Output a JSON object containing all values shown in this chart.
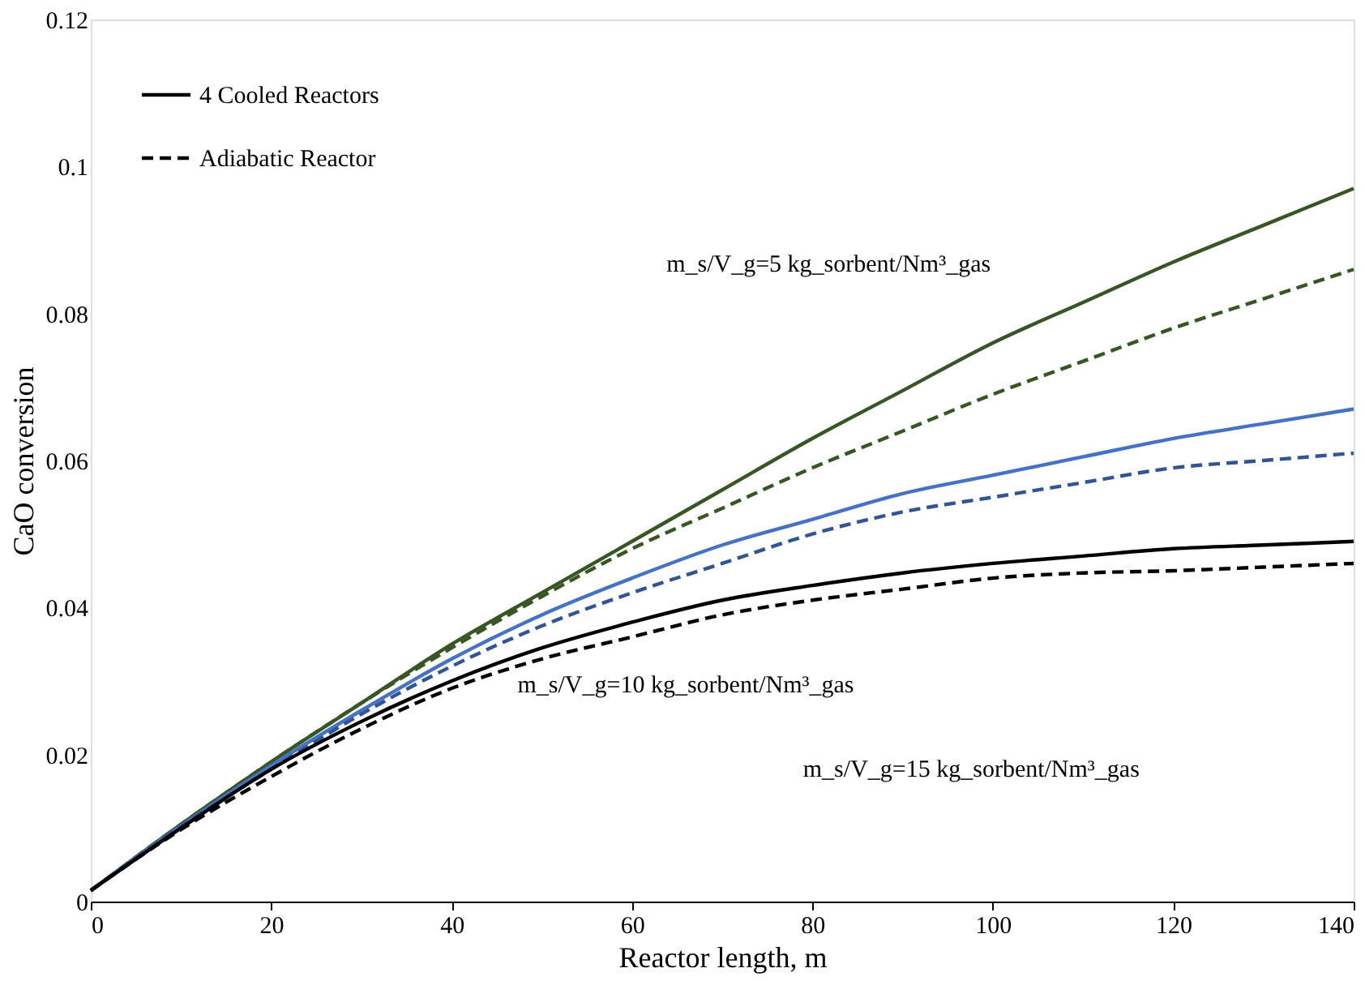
{
  "chart_data": {
    "type": "line",
    "xlabel": "Reactor length, m",
    "ylabel": "CaO conversion",
    "x": [
      0,
      10,
      20,
      30,
      40,
      50,
      60,
      70,
      80,
      90,
      100,
      110,
      120,
      130,
      140
    ],
    "series": [
      {
        "color": "#375623",
        "line_style": "solid",
        "values": [
          0.0015,
          0.0105,
          0.019,
          0.027,
          0.035,
          0.042,
          0.049,
          0.056,
          0.063,
          0.0695,
          0.076,
          0.0815,
          0.087,
          0.092,
          0.097
        ]
      },
      {
        "color": "#375623",
        "line_style": "dashed",
        "values": [
          0.0015,
          0.0105,
          0.019,
          0.027,
          0.0345,
          0.0415,
          0.048,
          0.0535,
          0.059,
          0.064,
          0.069,
          0.0735,
          0.078,
          0.082,
          0.086
        ]
      },
      {
        "color": "#4472c4",
        "line_style": "solid",
        "values": [
          0.0015,
          0.0103,
          0.0185,
          0.026,
          0.033,
          0.039,
          0.044,
          0.0485,
          0.052,
          0.0555,
          0.058,
          0.0605,
          0.063,
          0.065,
          0.067
        ]
      },
      {
        "color": "#2f5597",
        "line_style": "dashed",
        "values": [
          0.0015,
          0.0102,
          0.018,
          0.0255,
          0.032,
          0.0375,
          0.042,
          0.046,
          0.05,
          0.053,
          0.055,
          0.057,
          0.059,
          0.06,
          0.061
        ]
      },
      {
        "name": "4 Cooled Reactors",
        "color": "#000000",
        "line_style": "solid",
        "values": [
          0.0015,
          0.01,
          0.018,
          0.0245,
          0.03,
          0.0345,
          0.038,
          0.041,
          0.043,
          0.0447,
          0.046,
          0.047,
          0.048,
          0.0485,
          0.049
        ]
      },
      {
        "name": "Adiabatic Reactor",
        "color": "#000000",
        "line_style": "dashed",
        "values": [
          0.0015,
          0.0098,
          0.017,
          0.0235,
          0.029,
          0.033,
          0.036,
          0.039,
          0.041,
          0.0425,
          0.044,
          0.0447,
          0.045,
          0.0455,
          0.046
        ]
      }
    ],
    "xlim": [
      0,
      140
    ],
    "xticks": [
      0,
      20,
      40,
      60,
      80,
      100,
      120,
      140
    ],
    "ylim": [
      0,
      0.12
    ],
    "yticks": [
      0,
      0.02,
      0.04,
      0.06,
      0.08,
      0.1,
      0.12
    ],
    "grid": false,
    "legend": "top left",
    "marker": "none",
    "annotations": [
      "m_s/V_g=5 kg_sorbent/Nm³_gas",
      "m_s/V_g=10 kg_sorbent/Nm³_gas",
      "m_s/V_g=15 kg_sorbent/Nm³_gas"
    ]
  }
}
